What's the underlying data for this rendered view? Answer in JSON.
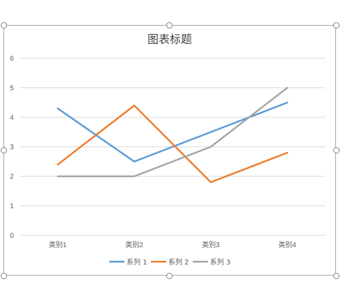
{
  "chart_data": {
    "type": "line",
    "title": "图表标题",
    "categories": [
      "类别1",
      "类别2",
      "类别3",
      "类别4"
    ],
    "ylim": [
      0,
      6
    ],
    "yticks": [
      0,
      1,
      2,
      3,
      4,
      5,
      6
    ],
    "grid": true,
    "legend_position": "bottom",
    "series": [
      {
        "name": "系列 1",
        "color": "#5b9bd5",
        "values": [
          4.3,
          2.5,
          3.5,
          4.5
        ]
      },
      {
        "name": "系列 2",
        "color": "#ed7d31",
        "values": [
          2.4,
          4.4,
          1.8,
          2.8
        ]
      },
      {
        "name": "系列 3",
        "color": "#a5a5a5",
        "values": [
          2,
          2,
          3,
          5
        ]
      }
    ]
  }
}
